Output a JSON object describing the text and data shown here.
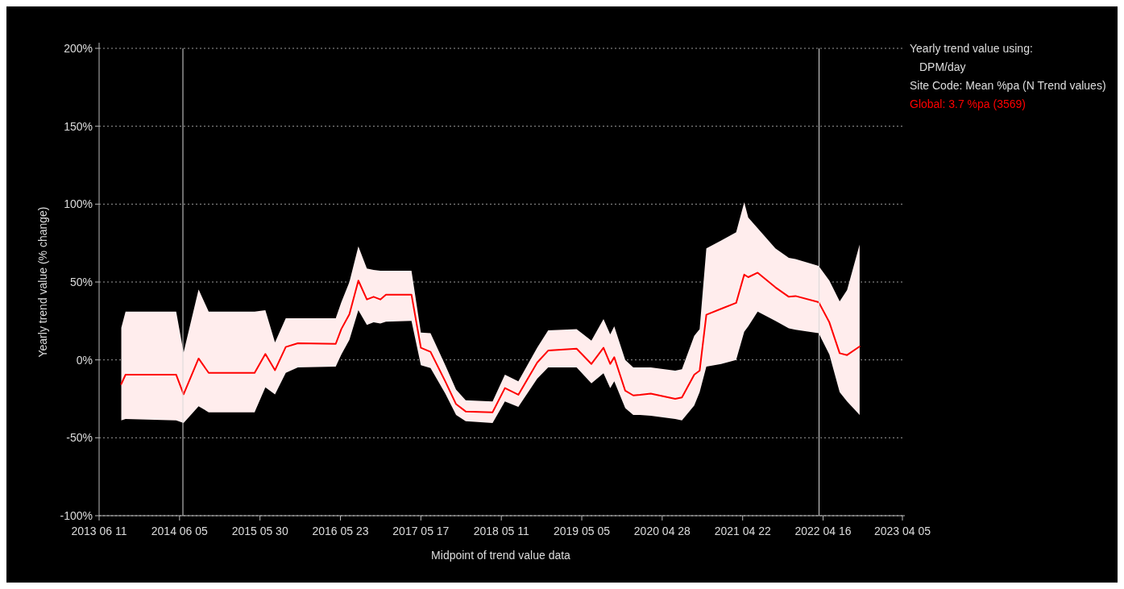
{
  "chart_data": {
    "type": "line",
    "xlabel": "Midpoint of trend value data",
    "ylabel": "Yearly trend value (% change)",
    "legend_title": "Yearly trend value using:",
    "legend": "right",
    "grid": "y",
    "annotations": [
      "DPM/day",
      "Site Code: Mean %pa (N Trend values)"
    ],
    "xlim": [
      "2013-06-11",
      "2023-04-05"
    ],
    "xticks": [
      {
        "value": "2013-06-11",
        "label": "2013 06 11"
      },
      {
        "value": "2014-06-05",
        "label": "2014 06 05"
      },
      {
        "value": "2015-05-30",
        "label": "2015 05 30"
      },
      {
        "value": "2016-05-23",
        "label": "2016 05 23"
      },
      {
        "value": "2017-05-17",
        "label": "2017 05 17"
      },
      {
        "value": "2018-05-11",
        "label": "2018 05 11"
      },
      {
        "value": "2019-05-05",
        "label": "2019 05 05"
      },
      {
        "value": "2020-04-28",
        "label": "2020 04 28"
      },
      {
        "value": "2021-04-22",
        "label": "2021 04 22"
      },
      {
        "value": "2022-04-16",
        "label": "2022 04 16"
      },
      {
        "value": "2023-04-05",
        "label": "2023 04 05"
      }
    ],
    "ylim": [
      -100,
      200
    ],
    "yticks": [
      {
        "value": -100,
        "label": "-100%"
      },
      {
        "value": -50,
        "label": "-50%"
      },
      {
        "value": 0,
        "label": "0%"
      },
      {
        "value": 50,
        "label": "50%"
      },
      {
        "value": 100,
        "label": "100%"
      },
      {
        "value": 150,
        "label": "150%"
      },
      {
        "value": 200,
        "label": "200%"
      }
    ],
    "ref_lines": [
      {
        "axis": "x",
        "value": "2014-06-20",
        "color": "#d9d9d9"
      },
      {
        "axis": "x",
        "value": "2022-03-29",
        "color": "#d9d9d9"
      }
    ],
    "x": [
      "2013-09-18",
      "2013-10-07",
      "2014-05-21",
      "2014-06-23",
      "2014-08-29",
      "2014-10-13",
      "2015-05-06",
      "2015-06-23",
      "2015-08-05",
      "2015-09-22",
      "2015-11-15",
      "2016-05-02",
      "2016-05-27",
      "2016-07-02",
      "2016-08-11",
      "2016-09-18",
      "2016-10-18",
      "2016-11-17",
      "2016-12-12",
      "2017-04-05",
      "2017-05-17",
      "2017-06-29",
      "2017-09-03",
      "2017-10-21",
      "2017-12-03",
      "2018-04-02",
      "2018-05-27",
      "2018-07-26",
      "2018-10-18",
      "2018-12-06",
      "2019-04-12",
      "2019-06-17",
      "2019-08-10",
      "2019-09-09",
      "2019-09-27",
      "2019-11-15",
      "2019-12-21",
      "2020-01-20",
      "2020-03-08",
      "2020-06-25",
      "2020-07-25",
      "2020-09-18",
      "2020-10-12",
      "2020-11-11",
      "2021-01-16",
      "2021-03-24",
      "2021-04-29",
      "2021-05-17",
      "2021-06-28",
      "2021-09-15",
      "2021-11-14",
      "2021-12-14",
      "2022-03-27",
      "2022-05-14",
      "2022-06-29",
      "2022-08-01",
      "2022-09-26"
    ],
    "series": [
      {
        "name": "Global: 3.7 %pa (3569)",
        "color": "#ff0000",
        "line_style": "solid",
        "values": [
          -15.5,
          -9.5,
          -9.5,
          -22.1,
          0.9,
          -8.3,
          -8.3,
          3.8,
          -6.6,
          8.3,
          10.7,
          10.3,
          19.8,
          29.3,
          50.9,
          38.8,
          40.5,
          38.8,
          41.9,
          41.9,
          7.8,
          5.2,
          -13.8,
          -28.4,
          -33.1,
          -33.6,
          -18.1,
          -22.4,
          -1.7,
          6,
          7.2,
          -2.6,
          7.8,
          -2.6,
          1.7,
          -19.8,
          -22.8,
          -22.4,
          -21.6,
          -25,
          -24.1,
          -9.5,
          -6.9,
          29,
          32.8,
          36.6,
          54.8,
          53.1,
          56,
          46.6,
          40.5,
          41,
          37.1,
          24.1,
          4.3,
          3.1,
          8.6
        ],
        "upper": [
          20.7,
          31,
          31,
          4.8,
          45.2,
          31,
          31,
          31.9,
          11.2,
          26.7,
          26.7,
          26.7,
          37.1,
          50,
          72.9,
          58.6,
          57.8,
          57.2,
          57.2,
          57.2,
          17.6,
          17.2,
          -3.4,
          -19,
          -25.9,
          -26.7,
          -9.5,
          -13.8,
          7.8,
          19,
          19.8,
          12.4,
          26.2,
          16.4,
          21.6,
          0,
          -4.8,
          -4.8,
          -4.8,
          -6.9,
          -6,
          15.5,
          19.8,
          71.6,
          76.7,
          81.9,
          101.2,
          91.4,
          84.5,
          71.6,
          65.5,
          64.7,
          60.3,
          50.9,
          37.6,
          44.8,
          74.1
        ],
        "lower": [
          -38.8,
          -37.9,
          -38.8,
          -40.5,
          -29.8,
          -33.6,
          -33.6,
          -17.6,
          -22.1,
          -8.3,
          -4.8,
          -4.3,
          3.4,
          12.9,
          31.9,
          22.4,
          24.1,
          23.3,
          24.5,
          25,
          -3.4,
          -5.2,
          -21.6,
          -35.3,
          -39.3,
          -40.5,
          -26.7,
          -30.2,
          -12.1,
          -4.8,
          -4.8,
          -15.1,
          -8.6,
          -18.1,
          -13.8,
          -31,
          -35.3,
          -35.3,
          -35.9,
          -37.9,
          -38.8,
          -29.3,
          -20.7,
          -4.3,
          -2.6,
          0,
          18.1,
          21.6,
          31,
          25,
          20.3,
          19.3,
          17.2,
          3.4,
          -20.7,
          -26.7,
          -35.3
        ]
      }
    ]
  }
}
